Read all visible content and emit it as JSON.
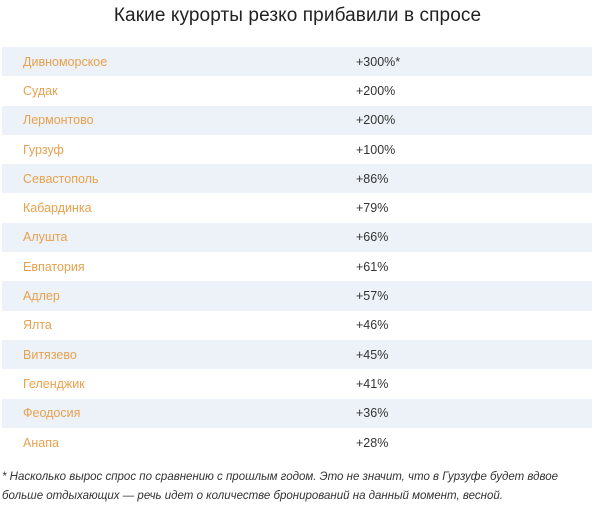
{
  "title": "Какие курорты резко прибавили в спросе",
  "rows": [
    {
      "city": "Дивноморское",
      "growth": "+300%*"
    },
    {
      "city": "Судак",
      "growth": "+200%"
    },
    {
      "city": "Лермонтово",
      "growth": "+200%"
    },
    {
      "city": "Гурзуф",
      "growth": "+100%"
    },
    {
      "city": "Севастополь",
      "growth": "+86%"
    },
    {
      "city": "Кабардинка",
      "growth": "+79%"
    },
    {
      "city": "Алушта",
      "growth": "+66%"
    },
    {
      "city": "Евпатория",
      "growth": "+61%"
    },
    {
      "city": "Адлер",
      "growth": "+57%"
    },
    {
      "city": "Ялта",
      "growth": "+46%"
    },
    {
      "city": "Витязево",
      "growth": "+45%"
    },
    {
      "city": "Геленджик",
      "growth": "+41%"
    },
    {
      "city": "Феодосия",
      "growth": "+36%"
    },
    {
      "city": "Анапа",
      "growth": "+28%"
    }
  ],
  "footnote": "* Насколько вырос спрос по сравнению с прошлым годом. Это не значит, что в Гурзуфе будет вдвое больше отдыхающих — речь идет о количестве бронирований на данный момент, весной.",
  "colors": {
    "city_text": "#e8a14e",
    "row_shade": "#ecf2f7"
  }
}
